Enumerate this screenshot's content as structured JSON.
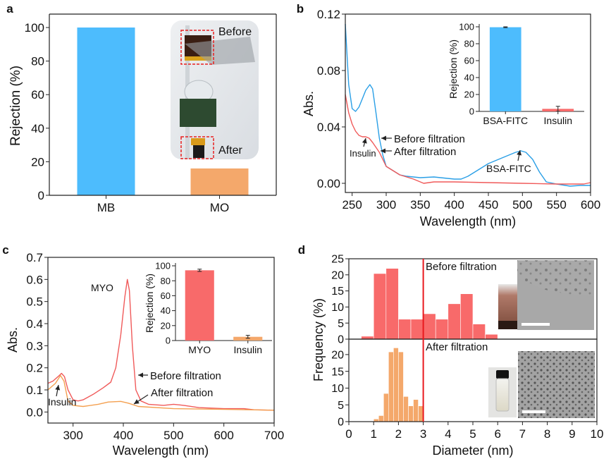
{
  "panel_letters": [
    "a",
    "b",
    "c",
    "d"
  ],
  "chart_data": [
    {
      "panel": "a",
      "type": "bar",
      "categories": [
        "MB",
        "MO"
      ],
      "values": [
        100,
        16
      ],
      "colors": [
        "#4dbcfd",
        "#f4a86b"
      ],
      "ylabel": "Rejection (%)",
      "xlabel": "",
      "ylim": [
        0,
        108
      ],
      "yticks": [
        0,
        20,
        40,
        60,
        80,
        100
      ],
      "ytick_labels": [
        "0",
        "20",
        "40",
        "60",
        "80",
        "100"
      ],
      "photo_labels": [
        "Before",
        "After"
      ]
    },
    {
      "panel": "b",
      "type": "line",
      "xlabel": "Wavelength (nm)",
      "ylabel": "Abs.",
      "xlim": [
        240,
        600
      ],
      "ylim": [
        -0.0065,
        0.12
      ],
      "xticks": [
        250,
        300,
        350,
        400,
        450,
        500,
        550,
        600
      ],
      "xtick_labels": [
        "250",
        "300",
        "350",
        "400",
        "450",
        "500",
        "550",
        "600"
      ],
      "yticks": [
        0,
        0.04,
        0.08,
        0.12
      ],
      "ytick_labels": [
        "0.00",
        "0.04",
        "0.08",
        "0.12"
      ],
      "series": [
        {
          "name": "Before filtration",
          "color": "#2a9fe6",
          "x": [
            240,
            245,
            250,
            255,
            260,
            265,
            270,
            276,
            280,
            285,
            290,
            295,
            300,
            310,
            320,
            330,
            350,
            370,
            390,
            400,
            410,
            420,
            430,
            450,
            470,
            490,
            498,
            505,
            515,
            525,
            535,
            550,
            570,
            585,
            600
          ],
          "y": [
            0.113,
            0.07,
            0.053,
            0.051,
            0.054,
            0.06,
            0.066,
            0.07,
            0.067,
            0.05,
            0.032,
            0.02,
            0.012,
            0.009,
            0.006,
            0.005,
            0.004,
            0.0045,
            0.0035,
            0.003,
            0.003,
            0.005,
            0.008,
            0.014,
            0.018,
            0.022,
            0.023,
            0.022,
            0.017,
            0.008,
            0.001,
            -0.0005,
            -0.002,
            -0.0015,
            -0.0015
          ]
        },
        {
          "name": "After filtration",
          "color": "#f05a5a",
          "x": [
            240,
            245,
            250,
            255,
            260,
            265,
            270,
            275,
            280,
            290,
            300,
            310,
            320,
            340,
            355,
            370,
            400,
            450,
            500,
            550,
            590,
            600
          ],
          "y": [
            0.063,
            0.05,
            0.042,
            0.037,
            0.034,
            0.033,
            0.033,
            0.032,
            0.029,
            0.022,
            0.012,
            0.009,
            0.006,
            0.003,
            0.0,
            0.001,
            0.001,
            0.0005,
            0.0,
            -0.0005,
            -0.0005,
            0.0005
          ]
        }
      ],
      "annotations": [
        "Insulin",
        "BSA-FITC"
      ],
      "inset": {
        "type": "bar",
        "categories": [
          "BSA-FITC",
          "Insulin"
        ],
        "values": [
          99.5,
          3
        ],
        "errors": [
          0.5,
          3
        ],
        "colors": [
          "#4dbcfd",
          "#f86a6a"
        ],
        "ylabel": "Rejection (%)",
        "ylim": [
          0,
          100
        ],
        "yticks": [
          0,
          20,
          40,
          60,
          80,
          100
        ],
        "ytick_labels": [
          "0",
          "20",
          "40",
          "60",
          "80",
          "100"
        ]
      }
    },
    {
      "panel": "c",
      "type": "line",
      "xlabel": "Wavelength (nm)",
      "ylabel": "Abs.",
      "xlim": [
        250,
        700
      ],
      "ylim": [
        -0.05,
        0.7
      ],
      "xticks": [
        300,
        400,
        500,
        600,
        700
      ],
      "xtick_labels": [
        "300",
        "400",
        "500",
        "600",
        "700"
      ],
      "yticks": [
        0,
        0.1,
        0.2,
        0.3,
        0.4,
        0.5,
        0.6,
        0.7
      ],
      "ytick_labels": [
        "0.0",
        "0.1",
        "0.2",
        "0.3",
        "0.4",
        "0.5",
        "0.6",
        "0.7"
      ],
      "series": [
        {
          "name": "Before filtration",
          "color": "#f05a5a",
          "x": [
            250,
            260,
            270,
            277,
            283,
            290,
            300,
            310,
            320,
            340,
            360,
            375,
            385,
            395,
            403,
            408,
            412,
            418,
            425,
            435,
            450,
            480,
            500,
            520,
            550,
            600,
            640,
            660,
            700
          ],
          "y": [
            0.13,
            0.14,
            0.16,
            0.175,
            0.16,
            0.1,
            0.055,
            0.05,
            0.055,
            0.08,
            0.11,
            0.135,
            0.2,
            0.35,
            0.52,
            0.6,
            0.55,
            0.3,
            0.1,
            0.05,
            0.035,
            0.03,
            0.035,
            0.03,
            0.02,
            0.015,
            0.015,
            0.01,
            0.008
          ]
        },
        {
          "name": "After filtration",
          "color": "#f4a050",
          "x": [
            250,
            265,
            275,
            282,
            290,
            300,
            320,
            350,
            370,
            395,
            410,
            430,
            500,
            600,
            700
          ],
          "y": [
            0.1,
            0.13,
            0.165,
            0.14,
            0.05,
            0.03,
            0.025,
            0.035,
            0.045,
            0.048,
            0.04,
            0.025,
            0.015,
            0.012,
            0.008
          ]
        }
      ],
      "annotations": [
        "MYO",
        "Insulin"
      ],
      "inset": {
        "type": "bar",
        "categories": [
          "MYO",
          "Insulin"
        ],
        "values": [
          94,
          5
        ],
        "errors": [
          1.5,
          2
        ],
        "colors": [
          "#f86a6a",
          "#f4a86b"
        ],
        "ylabel": "Rejection (%)",
        "ylim": [
          0,
          100
        ],
        "yticks": [
          0,
          20,
          40,
          60,
          80,
          100
        ],
        "ytick_labels": [
          "0",
          "20",
          "40",
          "60",
          "80",
          "100"
        ]
      }
    },
    {
      "panel": "d",
      "type": "bar",
      "xlabel": "Diameter (nm)",
      "ylabel": "Frequency (%)",
      "xlim": [
        0,
        10
      ],
      "xticks": [
        0,
        1,
        2,
        3,
        4,
        5,
        6,
        7,
        8,
        9,
        10
      ],
      "xtick_labels": [
        "0",
        "1",
        "2",
        "3",
        "4",
        "5",
        "6",
        "7",
        "8",
        "9",
        "10"
      ],
      "reference_line_x": 3,
      "reference_line_color": "#e8191e",
      "subplots": [
        {
          "label": "Before filtration",
          "color": "#f86a6a",
          "ylim": [
            0,
            25
          ],
          "yticks": [
            0,
            5,
            10,
            15,
            20,
            25
          ],
          "ytick_labels": [
            "0",
            "5",
            "10",
            "15",
            "20",
            "25"
          ],
          "bin_edges": [
            0.5,
            1,
            1.5,
            2,
            2.5,
            3,
            3.5,
            4,
            4.5,
            5,
            5.5,
            6
          ],
          "values": [
            0.9,
            20.4,
            22,
            6.2,
            6.2,
            7.9,
            6.2,
            11,
            14.1,
            4.7,
            1.5
          ]
        },
        {
          "label": "After filtration",
          "color": "#f4a86b",
          "ylim": [
            0,
            24.6
          ],
          "yticks": [
            0,
            5,
            10,
            15,
            20
          ],
          "ytick_labels": [
            "0",
            "5",
            "10",
            "15",
            "20"
          ],
          "bin_edges": [
            1,
            1.2,
            1.4,
            1.6,
            1.8,
            2,
            2.2,
            2.4,
            2.6,
            2.8,
            3
          ],
          "values": [
            0.8,
            1.8,
            8.4,
            20.8,
            22,
            20.8,
            7.5,
            4.7,
            6.6,
            4.7
          ]
        }
      ]
    }
  ]
}
